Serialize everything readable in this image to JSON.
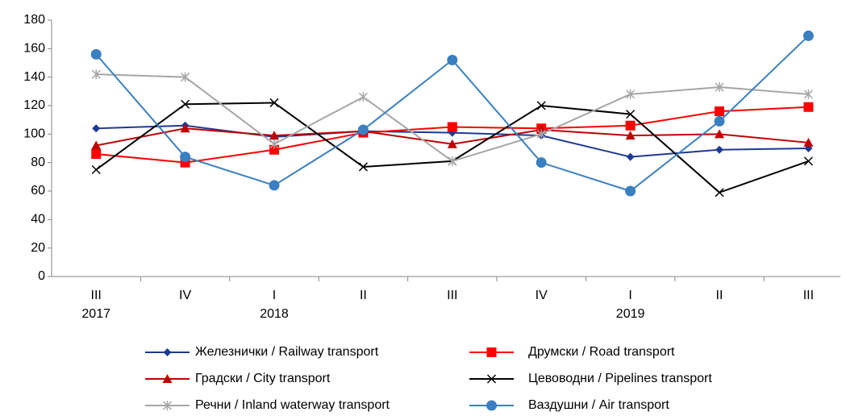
{
  "chart_data": {
    "type": "line",
    "categories": [
      "III",
      "IV",
      "I",
      "II",
      "III",
      "IV",
      "I",
      "II",
      "III"
    ],
    "years": [
      "2017",
      null,
      "2018",
      null,
      null,
      null,
      "2019",
      null,
      null
    ],
    "ylim": [
      0,
      180
    ],
    "yticks": [
      0,
      20,
      40,
      60,
      80,
      100,
      120,
      140,
      160,
      180
    ],
    "series": [
      {
        "name": "Железнички / Railway transport",
        "color": "#1f3a93",
        "marker": "diamond",
        "values": [
          104,
          106,
          98,
          102,
          101,
          99,
          84,
          89,
          90
        ]
      },
      {
        "name": "Друмски / Road transport",
        "color": "#ff0000",
        "marker": "square",
        "values": [
          86,
          80,
          89,
          101,
          105,
          104,
          106,
          116,
          119
        ]
      },
      {
        "name": "Градски / City transport",
        "color": "#c00000",
        "marker": "triangle",
        "values": [
          92,
          104,
          99,
          102,
          93,
          103,
          99,
          100,
          94
        ]
      },
      {
        "name": "Цевоводни / Pipelines transport",
        "color": "#000000",
        "marker": "x",
        "values": [
          75,
          121,
          122,
          77,
          81,
          120,
          114,
          59,
          81
        ]
      },
      {
        "name": "Речни / Inland waterway transport",
        "color": "#a6a6a6",
        "marker": "asterisk",
        "values": [
          142,
          140,
          93,
          126,
          81,
          100,
          128,
          133,
          128
        ]
      },
      {
        "name": "Ваздушни / Air transport",
        "color": "#3a7fc1",
        "marker": "circle",
        "values": [
          156,
          84,
          64,
          103,
          152,
          80,
          60,
          109,
          169
        ]
      }
    ]
  }
}
